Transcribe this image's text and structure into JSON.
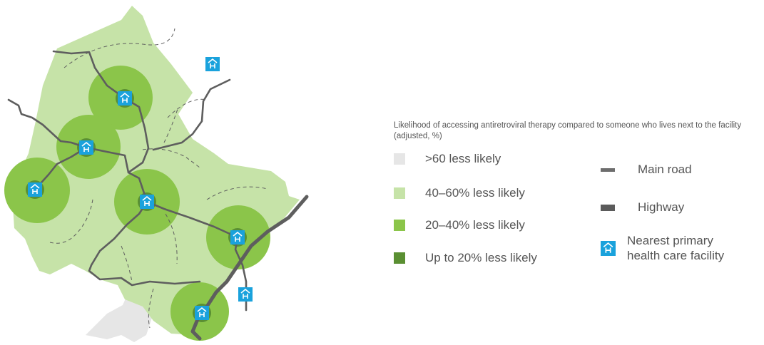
{
  "colors": {
    "gt60": "#e6e6e6",
    "40to60": "#c6e3a8",
    "20to40": "#8bc54a",
    "upto20": "#5a8f32",
    "facility": "#1aa2dc",
    "road": "#5e5e5e"
  },
  "legend": {
    "title": "Likelihood of accessing antiretroviral therapy compared to someone who lives next to the facility (adjusted, %)",
    "categories": [
      {
        "label": ">60 less likely",
        "color_key": "gt60"
      },
      {
        "label": "40–60% less likely",
        "color_key": "40to60"
      },
      {
        "label": "20–40% less likely",
        "color_key": "20to40"
      },
      {
        "label": "Up to 20% less likely",
        "color_key": "upto20"
      }
    ],
    "main_road": "Main road",
    "highway": "Highway",
    "facility_line1": "Nearest  primary",
    "facility_line2": "health care facility"
  },
  "icons": {
    "facility": "hospital-house-icon"
  }
}
